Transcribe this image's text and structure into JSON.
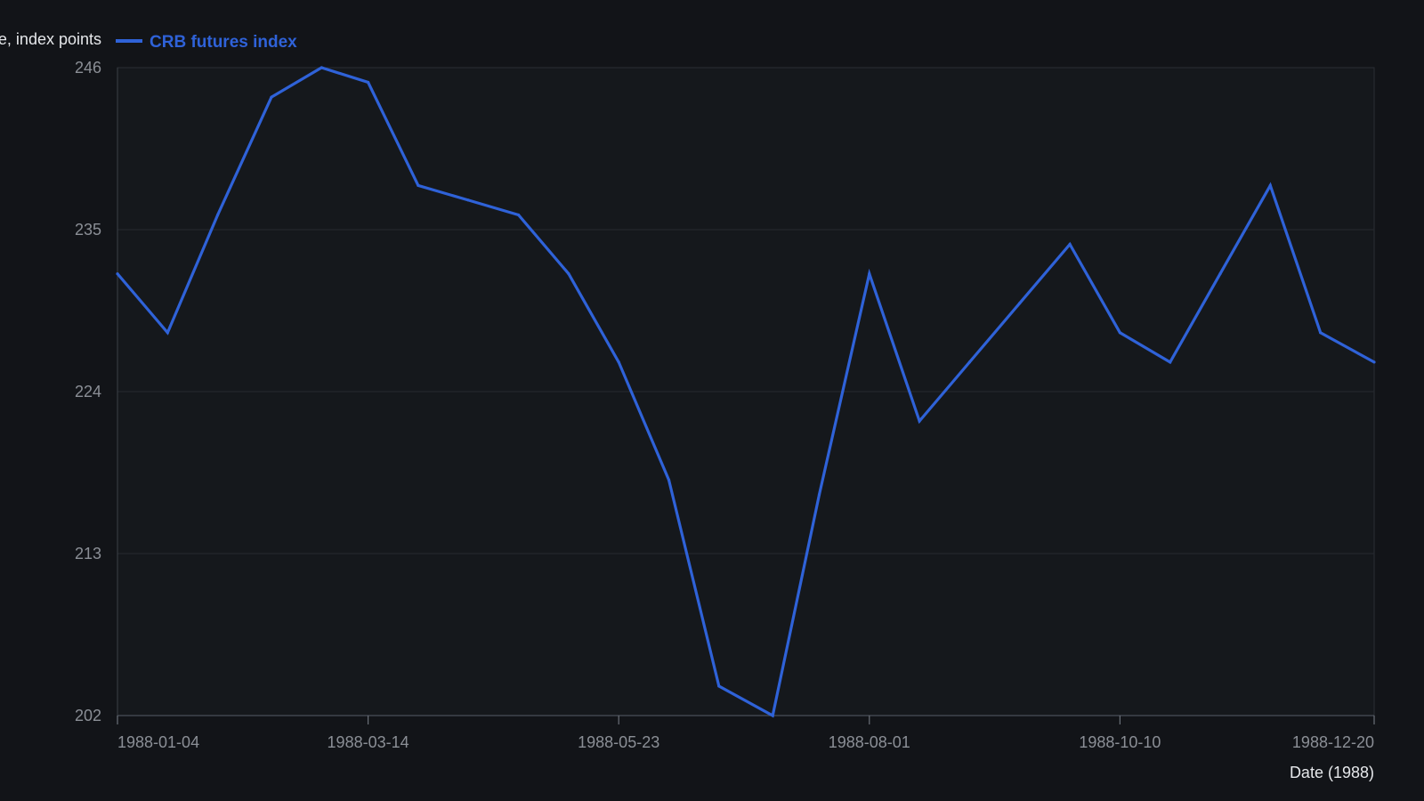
{
  "chart_data": {
    "type": "line",
    "ylabel": "Price, index points",
    "xlabel": "Date (1988)",
    "ylim": [
      202,
      246
    ],
    "yticks": [
      "202",
      "213",
      "224",
      "235",
      "246"
    ],
    "xlim": [
      "1988-01-04",
      "1988-12-20"
    ],
    "xticks": [
      "1988-01-04",
      "1988-03-14",
      "1988-05-23",
      "1988-08-01",
      "1988-10-10",
      "1988-12-20"
    ],
    "grid": true,
    "legend_position": "top-left",
    "series": [
      {
        "name": "CRB futures index",
        "color": "#2f62d8",
        "x": [
          "1988-01-04",
          "1988-01-18",
          "1988-02-01",
          "1988-02-16",
          "1988-03-01",
          "1988-03-14",
          "1988-03-28",
          "1988-04-11",
          "1988-04-25",
          "1988-05-09",
          "1988-05-23",
          "1988-06-06",
          "1988-06-20",
          "1988-07-05",
          "1988-07-18",
          "1988-08-01",
          "1988-08-15",
          "1988-08-29",
          "1988-09-12",
          "1988-09-26",
          "1988-10-10",
          "1988-10-24",
          "1988-11-07",
          "1988-11-21",
          "1988-12-05",
          "1988-12-20"
        ],
        "values": [
          232,
          228,
          236,
          244,
          246,
          245,
          238,
          237,
          236,
          232,
          226,
          218,
          204,
          202,
          217,
          232,
          222,
          226,
          230,
          234,
          228,
          226,
          232,
          238,
          228,
          226
        ]
      }
    ]
  }
}
